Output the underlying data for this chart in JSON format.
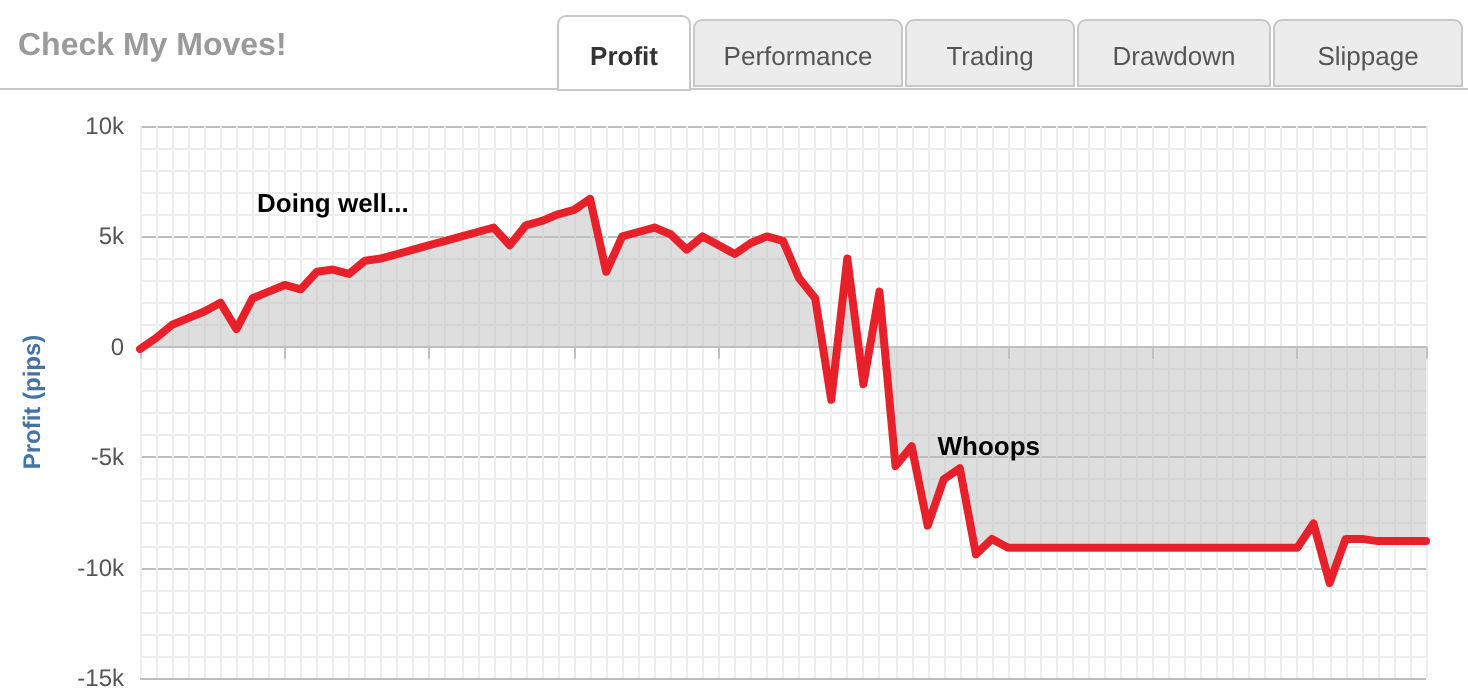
{
  "chart_data": {
    "type": "area",
    "title": "Check My Moves!",
    "ylabel": "Profit (pips)",
    "categories": [
      null,
      null,
      null,
      null,
      null,
      null,
      null,
      null,
      null,
      null,
      null,
      null,
      null,
      null,
      null,
      null,
      null,
      null,
      null,
      null,
      null,
      null,
      null,
      null,
      null,
      null,
      null,
      null,
      null,
      null,
      null,
      null,
      null,
      null,
      null,
      null,
      null,
      null,
      null,
      null,
      null,
      null,
      null,
      null,
      null,
      null,
      null,
      null,
      null,
      null,
      null,
      null,
      null,
      null,
      null,
      null,
      null,
      null,
      null,
      null,
      null,
      null,
      null,
      null,
      null,
      null,
      null,
      null,
      null,
      null,
      null,
      null,
      null,
      null,
      null,
      null,
      null,
      null,
      null,
      null,
      null
    ],
    "series": [
      {
        "color": "#e8202a",
        "values": [
          -100,
          400,
          1000,
          1300,
          1600,
          2000,
          800,
          2200,
          2500,
          2800,
          2600,
          3400,
          3500,
          3300,
          3900,
          4000,
          4200,
          4400,
          4600,
          4800,
          5000,
          5200,
          5400,
          4600,
          5500,
          5700,
          6000,
          6200,
          6700,
          3400,
          5000,
          5200,
          5400,
          5100,
          4400,
          5000,
          4600,
          4200,
          4700,
          5000,
          4800,
          3100,
          2200,
          -2400,
          4000,
          -1700,
          2500,
          -5400,
          -4500,
          -8100,
          -6000,
          -5500,
          -9400,
          -8700,
          -9100,
          -9100,
          -9100,
          -9100,
          -9100,
          -9100,
          -9100,
          -9100,
          -9100,
          -9100,
          -9100,
          -9100,
          -9100,
          -9100,
          -9100,
          -9100,
          -9100,
          -9100,
          -9100,
          -8000,
          -10700,
          -8700,
          -8700,
          -8800,
          -8800,
          -8800,
          -8800
        ]
      }
    ],
    "ylim": [
      -15000,
      10000
    ],
    "yticks": [
      {
        "value": -15000,
        "label": "-15k"
      },
      {
        "value": -10000,
        "label": "-10k"
      },
      {
        "value": -5000,
        "label": "-5k"
      },
      0,
      {
        "value": 5000,
        "label": "5k"
      },
      {
        "value": 10000,
        "label": "10k"
      }
    ],
    "grid": true,
    "tick_labels": "y",
    "line_style": "solid",
    "annotations": [
      "Doing well...",
      "Whoops",
      "Profit",
      "Performance",
      "Trading",
      "Drawdown",
      "Slippage"
    ]
  }
}
